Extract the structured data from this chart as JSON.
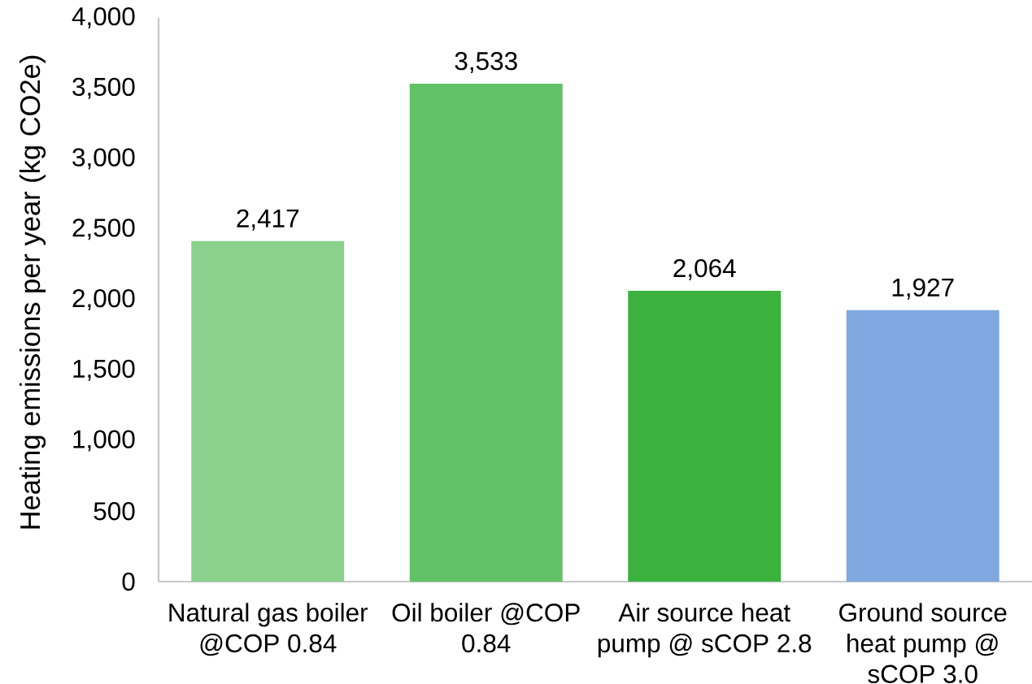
{
  "chart_data": {
    "type": "bar",
    "ylabel": "Heating emissions per year (kg CO2e)",
    "categories": [
      "Natural gas boiler @COP 0.84",
      "Oil boiler @COP 0.84",
      "Air source heat pump @ sCOP 2.8",
      "Ground source heat pump @ sCOP 3.0"
    ],
    "values": [
      2417,
      3533,
      2064,
      1927
    ],
    "colors": [
      "#89d18c",
      "#63c167",
      "#3bb13e",
      "#80a8e0"
    ],
    "value_labels": [
      "2,417",
      "3,533",
      "2,064",
      "1,927"
    ],
    "ylim": [
      0,
      4000
    ],
    "yticks": [
      0,
      500,
      {
        "value": 1000,
        "label": "1,000"
      },
      {
        "value": 1500,
        "label": "1,500"
      },
      {
        "value": 2000,
        "label": "2,000"
      },
      {
        "value": 2500,
        "label": "2,500"
      },
      {
        "value": 3000,
        "label": "3,000"
      },
      {
        "value": 3500,
        "label": "3,500"
      },
      {
        "value": 4000,
        "label": "4,000"
      }
    ]
  }
}
